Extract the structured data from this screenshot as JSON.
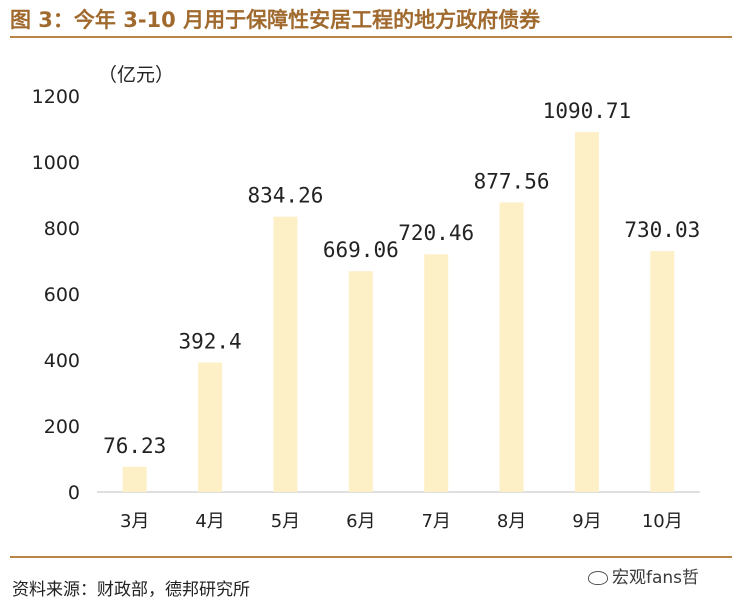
{
  "figure": {
    "title": "图 3：今年 3-10 月用于保障性安居工程的地方政府债券",
    "source": "资料来源：财政部，德邦研究所",
    "watermark": "宏观fans哲"
  },
  "colors": {
    "title": "#A0692E",
    "rule": "#B98547",
    "bar": "#FDEFC6",
    "axis": "#BFBFBF",
    "text": "#222222"
  },
  "chart_data": {
    "type": "bar",
    "unit_label": "（亿元）",
    "title": "",
    "xlabel": "",
    "ylabel": "",
    "categories": [
      "3月",
      "4月",
      "5月",
      "6月",
      "7月",
      "8月",
      "9月",
      "10月"
    ],
    "values": [
      76.23,
      392.4,
      834.26,
      669.06,
      720.46,
      877.56,
      1090.71,
      730.03
    ],
    "data_labels": [
      "76.23",
      "392.4",
      "834.26",
      "669.06",
      "720.46",
      "877.56",
      "1090.71",
      "730.03"
    ],
    "ylim": [
      0,
      1200
    ],
    "yticks": [
      0,
      200,
      400,
      600,
      800,
      1000,
      1200
    ],
    "grid": false,
    "legend": "none"
  }
}
